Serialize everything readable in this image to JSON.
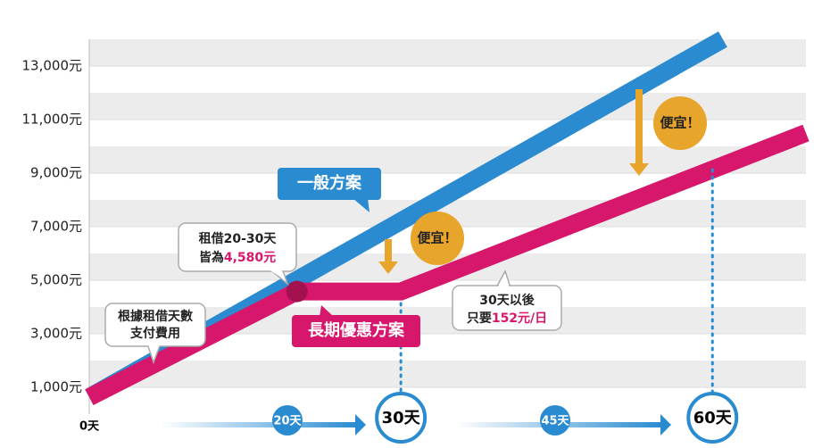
{
  "chart_data": {
    "type": "line",
    "xlim": [
      0,
      69
    ],
    "ylim": [
      0,
      14000
    ],
    "yticks": [
      {
        "value": 1000,
        "label": "1,000元"
      },
      {
        "value": 3000,
        "label": "3,000元"
      },
      {
        "value": 5000,
        "label": "5,000元",
        "color": "#2a9fd8"
      },
      {
        "value": 7000,
        "label": "7,000元"
      },
      {
        "value": 9000,
        "label": "9,000元",
        "color": "#2a9fd8"
      },
      {
        "value": 11000,
        "label": "11,000元"
      },
      {
        "value": 13000,
        "label": "13,000元"
      }
    ],
    "xticks": [
      {
        "value": 0,
        "label": "0天"
      },
      {
        "value": 30,
        "label": "30天"
      },
      {
        "value": 60,
        "label": "60天"
      }
    ],
    "grid": "stripes",
    "series": [
      {
        "name": "一般方案",
        "color": "#2a8bd0",
        "x": [
          0,
          61
        ],
        "values": [
          630,
          14000
        ]
      },
      {
        "name": "長期優惠方案",
        "color": "#d6176c",
        "x": [
          0,
          20,
          30,
          69
        ],
        "values": [
          630,
          4580,
          4580,
          10500
        ]
      }
    ],
    "callouts": {
      "pay_by_days": [
        "根據租借天數",
        "支付費用"
      ],
      "flat_rate": {
        "line1": "租借20-30天",
        "prefix": "皆為",
        "price": "4,580元"
      },
      "after_30": {
        "line1": "30天以後",
        "prefix": "只要",
        "price": "152元/日"
      },
      "cheaper": [
        "便宜！",
        "便宜！"
      ]
    },
    "arrow_labels": [
      "20天",
      "45天"
    ]
  }
}
